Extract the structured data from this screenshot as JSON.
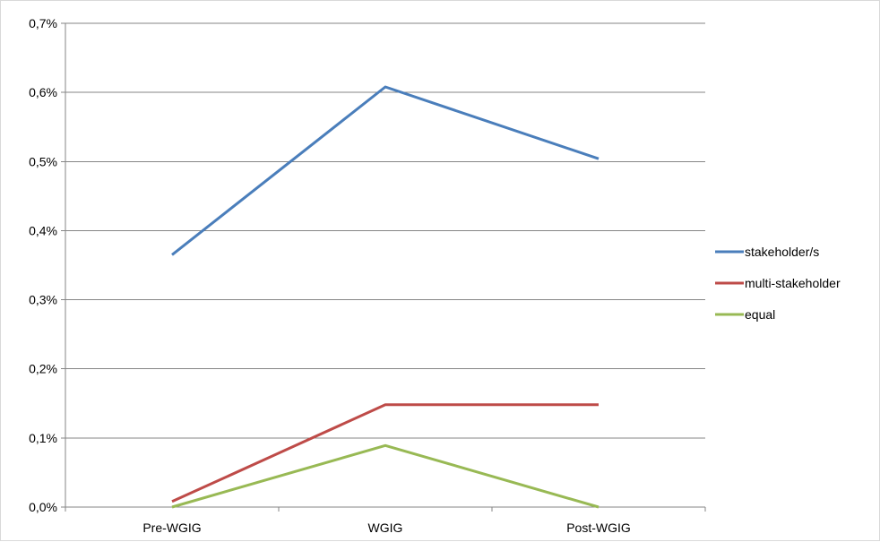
{
  "chart_data": {
    "type": "line",
    "title": "",
    "xlabel": "",
    "ylabel": "",
    "categories": [
      "Pre-WGIG",
      "WGIG",
      "Post-WGIG"
    ],
    "ylim": [
      0,
      0.7
    ],
    "y_ticks": [
      0,
      0.1,
      0.2,
      0.3,
      0.4,
      0.5,
      0.6,
      0.7
    ],
    "y_tick_labels": [
      "0,0%",
      "0,1%",
      "0,2%",
      "0,3%",
      "0,4%",
      "0,5%",
      "0,6%",
      "0,7%"
    ],
    "y_unit": "%",
    "grid": true,
    "legend_position": "right",
    "series": [
      {
        "name": "stakeholder/s",
        "color": "#4a7ebb",
        "values": [
          0.365,
          0.608,
          0.504
        ]
      },
      {
        "name": "multi-stakeholder",
        "color": "#be4b48",
        "values": [
          0.008,
          0.148,
          0.148
        ]
      },
      {
        "name": "equal",
        "color": "#98b954",
        "values": [
          0.0,
          0.089,
          0.0
        ]
      }
    ]
  }
}
